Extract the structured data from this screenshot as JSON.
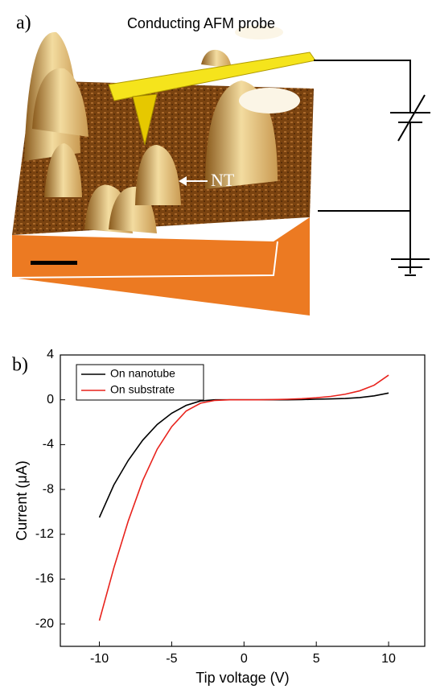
{
  "panel_a": {
    "label": "a)",
    "title": "Conducting AFM probe",
    "annotation": "NT"
  },
  "chart_data": {
    "type": "line",
    "panel_label": "b)",
    "x_label": "Tip voltage (V)",
    "y_label": "Current (μA)",
    "x": [
      -10,
      -9,
      -8,
      -7,
      -6,
      -5,
      -4,
      -3,
      -2,
      -1,
      0,
      1,
      2,
      3,
      4,
      5,
      6,
      7,
      8,
      9,
      10
    ],
    "series": [
      {
        "name": "On nanotube",
        "color": "#000000",
        "values": [
          -10.5,
          -7.6,
          -5.4,
          -3.6,
          -2.2,
          -1.2,
          -0.5,
          -0.1,
          0,
          0,
          0,
          0,
          0,
          0,
          0.02,
          0.05,
          0.08,
          0.12,
          0.2,
          0.35,
          0.6
        ]
      },
      {
        "name": "On substrate",
        "color": "#e8221c",
        "values": [
          -19.7,
          -15.0,
          -10.8,
          -7.2,
          -4.4,
          -2.4,
          -1.0,
          -0.3,
          -0.05,
          0,
          0,
          0,
          0.02,
          0.05,
          0.1,
          0.18,
          0.3,
          0.5,
          0.8,
          1.3,
          2.2
        ]
      }
    ],
    "xlim": [
      -12.7,
      12.5
    ],
    "ylim": [
      -22,
      4
    ],
    "xticks": [
      -10,
      -5,
      0,
      5,
      10
    ],
    "yticks": [
      4,
      0,
      -4,
      -8,
      -12,
      -16,
      -20
    ],
    "legend": "upper left"
  }
}
